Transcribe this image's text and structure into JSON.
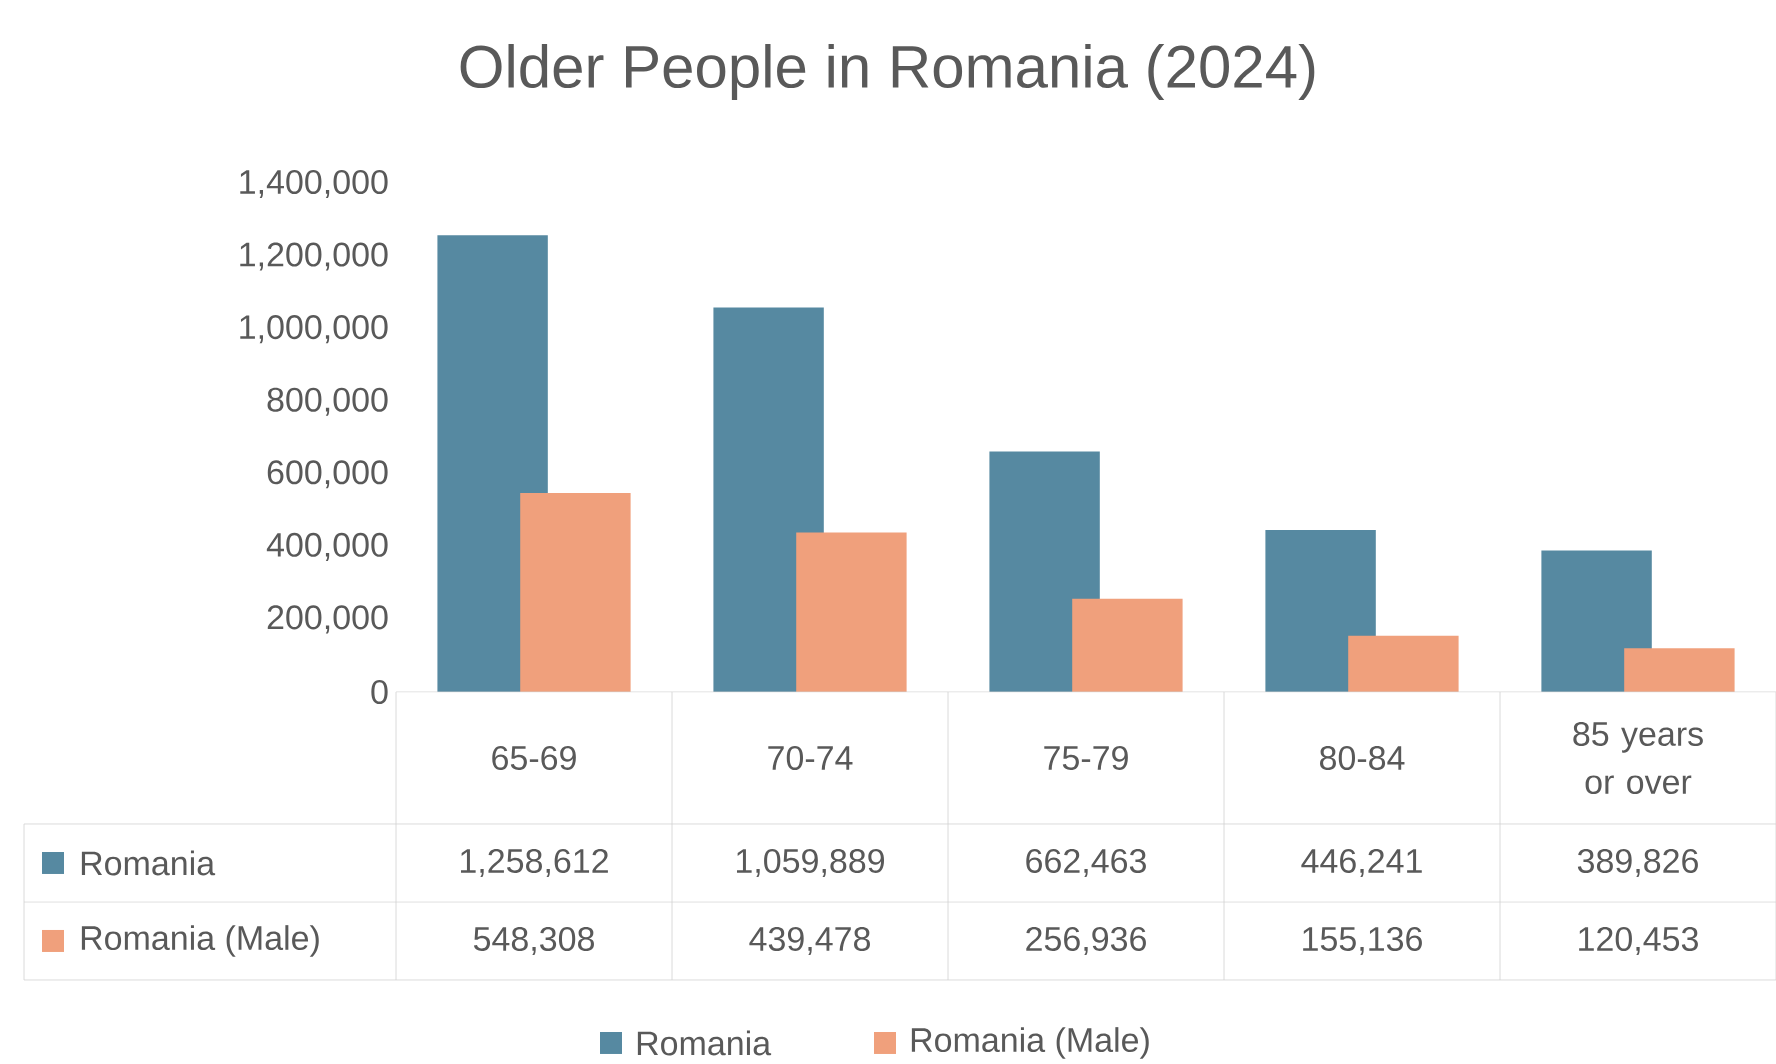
{
  "chart_data": {
    "type": "bar",
    "title": "Older People in Romania (2024)",
    "categories": [
      "65-69",
      "70-74",
      "75-79",
      "80-84",
      "85 years or over"
    ],
    "series": [
      {
        "name": "Romania",
        "color": "#5689a1",
        "values": [
          1258612,
          1059889,
          662463,
          446241,
          389826
        ],
        "value_labels": [
          "1,258,612",
          "1,059,889",
          "662,463",
          "446,241",
          "389,826"
        ]
      },
      {
        "name": "Romania (Male)",
        "color": "#f0a07c",
        "values": [
          548308,
          439478,
          256936,
          155136,
          120453
        ],
        "value_labels": [
          "548,308",
          "439,478",
          "256,936",
          "155,136",
          "120,453"
        ]
      }
    ],
    "ylim": [
      0,
      1400000
    ],
    "yticks": [
      0,
      {
        "value": 200000,
        "label": "200,000"
      },
      {
        "value": 400000,
        "label": "400,000"
      },
      {
        "value": 600000,
        "label": "600,000"
      },
      {
        "value": 800000,
        "label": "800,000"
      },
      {
        "value": 1000000,
        "label": "1,000,000"
      },
      {
        "value": 1200000,
        "label": "1,200,000"
      },
      {
        "value": 1400000,
        "label": "1,400,000"
      }
    ],
    "legend": "bottom"
  }
}
